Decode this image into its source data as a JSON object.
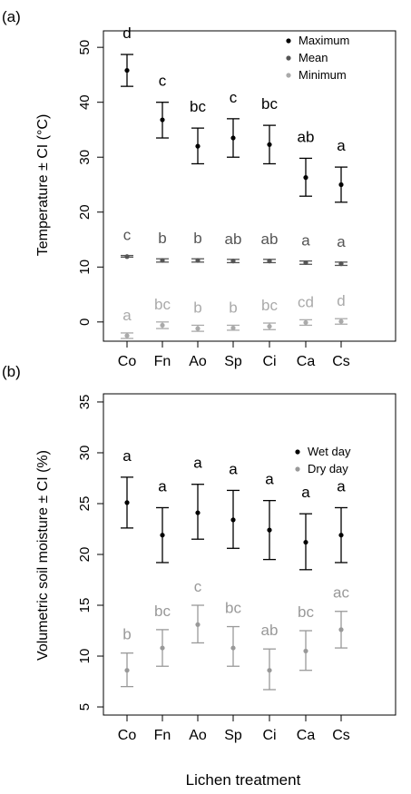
{
  "xlabel": "Lichen treatment",
  "chart_data": [
    {
      "panel_label": "(a)",
      "type": "scatter",
      "title": "",
      "xlabel": "",
      "ylabel": "Temperature ± CI (°C)",
      "categories": [
        "Co",
        "Fn",
        "Ao",
        "Sp",
        "Ci",
        "Ca",
        "Cs"
      ],
      "ylim": [
        -3.5,
        53
      ],
      "yticks": [
        0,
        10,
        20,
        30,
        40,
        50
      ],
      "legend_position": "top-right",
      "grid": false,
      "series": [
        {
          "name": "Maximum",
          "color": "#000000",
          "values": [
            45.8,
            36.8,
            32.0,
            33.5,
            32.3,
            26.3,
            25.0
          ],
          "lower": [
            42.9,
            33.5,
            28.8,
            30.0,
            28.8,
            22.9,
            21.8
          ],
          "upper": [
            48.7,
            40.0,
            35.3,
            37.0,
            35.8,
            29.8,
            28.2
          ],
          "letters": [
            "d",
            "c",
            "bc",
            "c",
            "bc",
            "ab",
            "a"
          ]
        },
        {
          "name": "Mean",
          "color": "#555555",
          "values": [
            11.9,
            11.2,
            11.2,
            11.1,
            11.1,
            10.8,
            10.6
          ],
          "lower": [
            11.8,
            10.9,
            10.9,
            10.8,
            10.8,
            10.5,
            10.3
          ],
          "upper": [
            12.1,
            11.5,
            11.5,
            11.4,
            11.4,
            11.1,
            10.9
          ],
          "letters": [
            "c",
            "b",
            "b",
            "ab",
            "ab",
            "a",
            "a"
          ]
        },
        {
          "name": "Minimum",
          "color": "#aaaaaa",
          "values": [
            -2.5,
            -0.6,
            -1.2,
            -1.1,
            -0.8,
            -0.1,
            0.1
          ],
          "lower": [
            -3.0,
            -1.2,
            -1.7,
            -1.5,
            -1.4,
            -0.6,
            -0.4
          ],
          "upper": [
            -2.0,
            0.0,
            -0.6,
            -0.6,
            -0.2,
            0.4,
            0.6
          ],
          "letters": [
            "a",
            "bc",
            "b",
            "b",
            "bc",
            "cd",
            "d"
          ]
        }
      ]
    },
    {
      "panel_label": "(b)",
      "type": "scatter",
      "title": "",
      "xlabel": "Lichen treatment",
      "ylabel": "Volumetric soil moisture ± CI (%)",
      "categories": [
        "Co",
        "Fn",
        "Ao",
        "Sp",
        "Ci",
        "Ca",
        "Cs"
      ],
      "ylim": [
        4.2,
        35.8
      ],
      "yticks": [
        5,
        10,
        15,
        20,
        25,
        30,
        35
      ],
      "legend_position": "top-right",
      "grid": false,
      "series": [
        {
          "name": "Wet day",
          "color": "#000000",
          "values": [
            25.1,
            21.9,
            24.1,
            23.4,
            22.4,
            21.2,
            21.9
          ],
          "lower": [
            22.6,
            19.2,
            21.5,
            20.6,
            19.5,
            18.5,
            19.2
          ],
          "upper": [
            27.6,
            24.6,
            26.9,
            26.3,
            25.3,
            24.0,
            24.6
          ],
          "letters": [
            "a",
            "a",
            "a",
            "a",
            "a",
            "a",
            "a"
          ]
        },
        {
          "name": "Dry day",
          "color": "#999999",
          "values": [
            8.6,
            10.8,
            13.1,
            10.8,
            8.6,
            10.5,
            12.6
          ],
          "lower": [
            7.0,
            9.0,
            11.3,
            9.0,
            6.7,
            8.6,
            10.8
          ],
          "upper": [
            10.3,
            12.6,
            15.0,
            12.9,
            10.7,
            12.5,
            14.4
          ],
          "letters": [
            "b",
            "bc",
            "c",
            "bc",
            "ab",
            "bc",
            "ac"
          ]
        }
      ]
    }
  ]
}
